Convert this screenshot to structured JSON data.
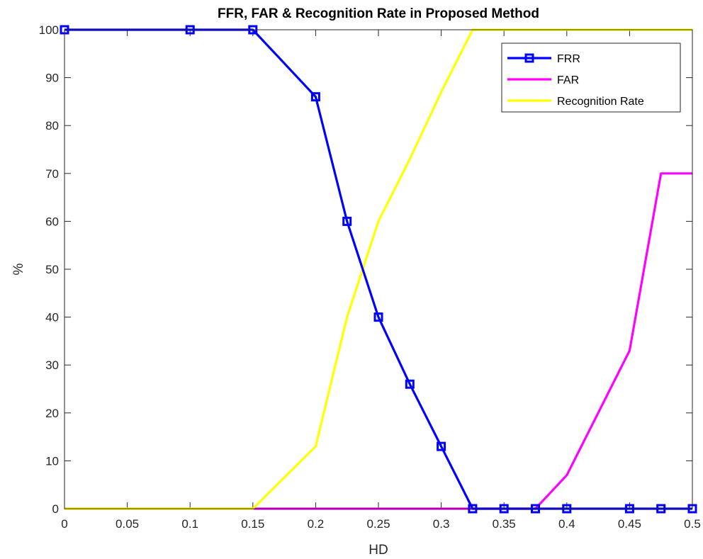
{
  "chart_data": {
    "type": "line",
    "title": "FFR, FAR & Recognition Rate in Proposed Method",
    "xlabel": "HD",
    "ylabel": "%",
    "xlim": [
      0,
      0.5
    ],
    "ylim": [
      0,
      100
    ],
    "x_ticks": [
      "0",
      "0.05",
      "0.1",
      "0.15",
      "0.2",
      "0.25",
      "0.3",
      "0.35",
      "0.4",
      "0.45",
      "0.5"
    ],
    "y_ticks": [
      "0",
      "10",
      "20",
      "30",
      "40",
      "50",
      "60",
      "70",
      "80",
      "90",
      "100"
    ],
    "grid": false,
    "legend_position": "top-right",
    "series": [
      {
        "name": "FRR",
        "color": "#0000ff",
        "marker": "square",
        "x": [
          0,
          0.1,
          0.15,
          0.2,
          0.225,
          0.25,
          0.275,
          0.3,
          0.325,
          0.35,
          0.375,
          0.4,
          0.45,
          0.475,
          0.5
        ],
        "y": [
          100,
          100,
          100,
          86,
          60,
          40,
          26,
          13,
          0,
          0,
          0,
          0,
          0,
          0,
          0
        ]
      },
      {
        "name": "FAR",
        "color": "#ff00ff",
        "marker": "none",
        "x": [
          0,
          0.15,
          0.375,
          0.4,
          0.45,
          0.475,
          0.5
        ],
        "y": [
          0,
          0,
          0,
          7,
          33,
          70,
          70
        ]
      },
      {
        "name": "Recognition Rate",
        "color": "#ffff00",
        "marker": "none",
        "x": [
          0,
          0.15,
          0.2,
          0.225,
          0.25,
          0.275,
          0.3,
          0.325,
          0.5
        ],
        "y": [
          0,
          0,
          13,
          40,
          60,
          73,
          87,
          100,
          100
        ]
      }
    ]
  }
}
